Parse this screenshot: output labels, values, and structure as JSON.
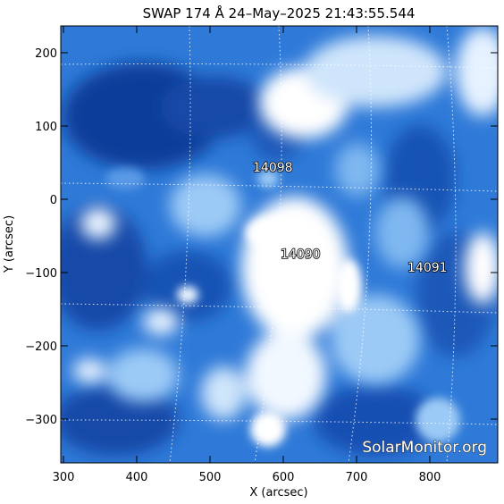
{
  "title": "SWAP 174 Å 24–May–2025 21:43:55.544",
  "xlabel": "X (arcsec)",
  "ylabel": "Y (arcsec)",
  "x_ticks": [
    "300",
    "400",
    "500",
    "600",
    "700",
    "800"
  ],
  "y_ticks": [
    "200",
    "100",
    "0",
    "−100",
    "−200",
    "−300"
  ],
  "regions": [
    {
      "id": "14098",
      "label": "14098"
    },
    {
      "id": "14090",
      "label": "14090"
    },
    {
      "id": "14091",
      "label": "14091"
    }
  ],
  "watermark": "SolarMonitor.org",
  "colors": {
    "deep_blue": "#0a3c9a",
    "mid_blue": "#2f7ad8",
    "light_blue": "#9ccaf6",
    "white": "#ffffff"
  }
}
